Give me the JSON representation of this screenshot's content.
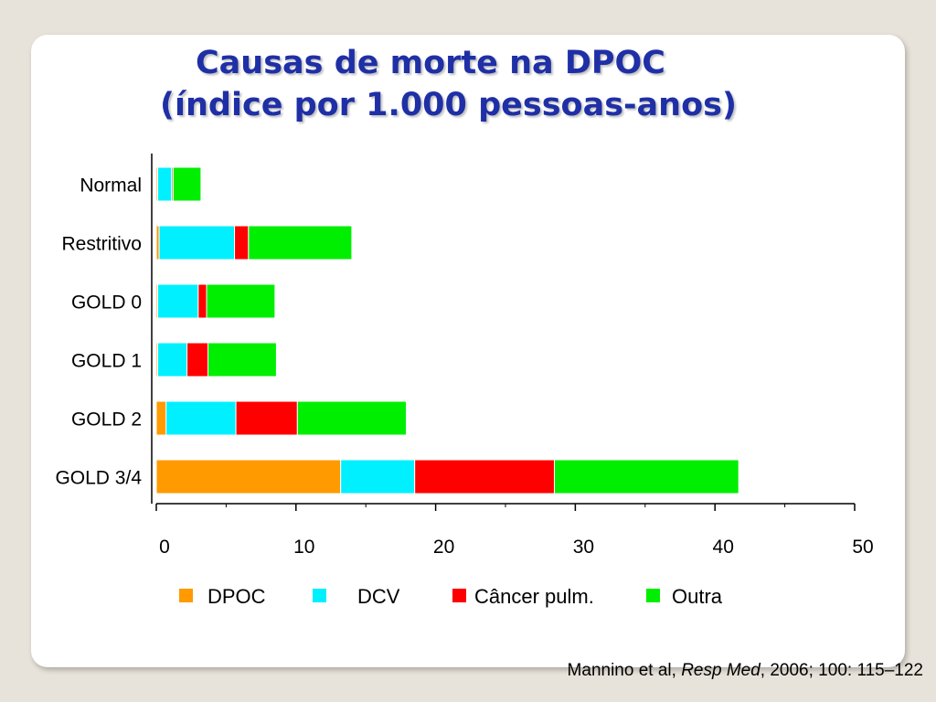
{
  "slide": {
    "title_line1": "Causas de morte na DPOC",
    "title_line2": "(índice por 1.000 pessoas-anos)",
    "citation": {
      "prefix": "Mannino et al, ",
      "journal": "Resp Med",
      "suffix": ", 2006; 100: 115–122"
    }
  },
  "chart_data": {
    "type": "bar",
    "orientation": "horizontal",
    "stacked": true,
    "title": "Causas de morte na DPOC (índice por 1.000 pessoas-anos)",
    "categories": [
      "Normal",
      "Restritivo",
      "GOLD 0",
      "GOLD 1",
      "GOLD 2",
      "GOLD 3/4"
    ],
    "series": [
      {
        "name": "DPOC",
        "color": "#ff9a00",
        "values": [
          0.1,
          0.2,
          0.1,
          0.1,
          0.7,
          13.2
        ]
      },
      {
        "name": "DCV",
        "color": "#00f0ff",
        "values": [
          1.0,
          5.4,
          2.9,
          2.1,
          5.0,
          5.3
        ]
      },
      {
        "name": "Câncer pulm.",
        "color": "#ff0000",
        "values": [
          0.1,
          1.0,
          0.6,
          1.5,
          4.4,
          10.0
        ]
      },
      {
        "name": "Outra",
        "color": "#00ee00",
        "values": [
          2.0,
          7.4,
          4.9,
          4.9,
          7.8,
          13.2
        ]
      }
    ],
    "xlim": [
      0,
      50
    ],
    "xticks": [
      0,
      10,
      20,
      30,
      40,
      50
    ],
    "grid": false,
    "legend": "bottom"
  }
}
